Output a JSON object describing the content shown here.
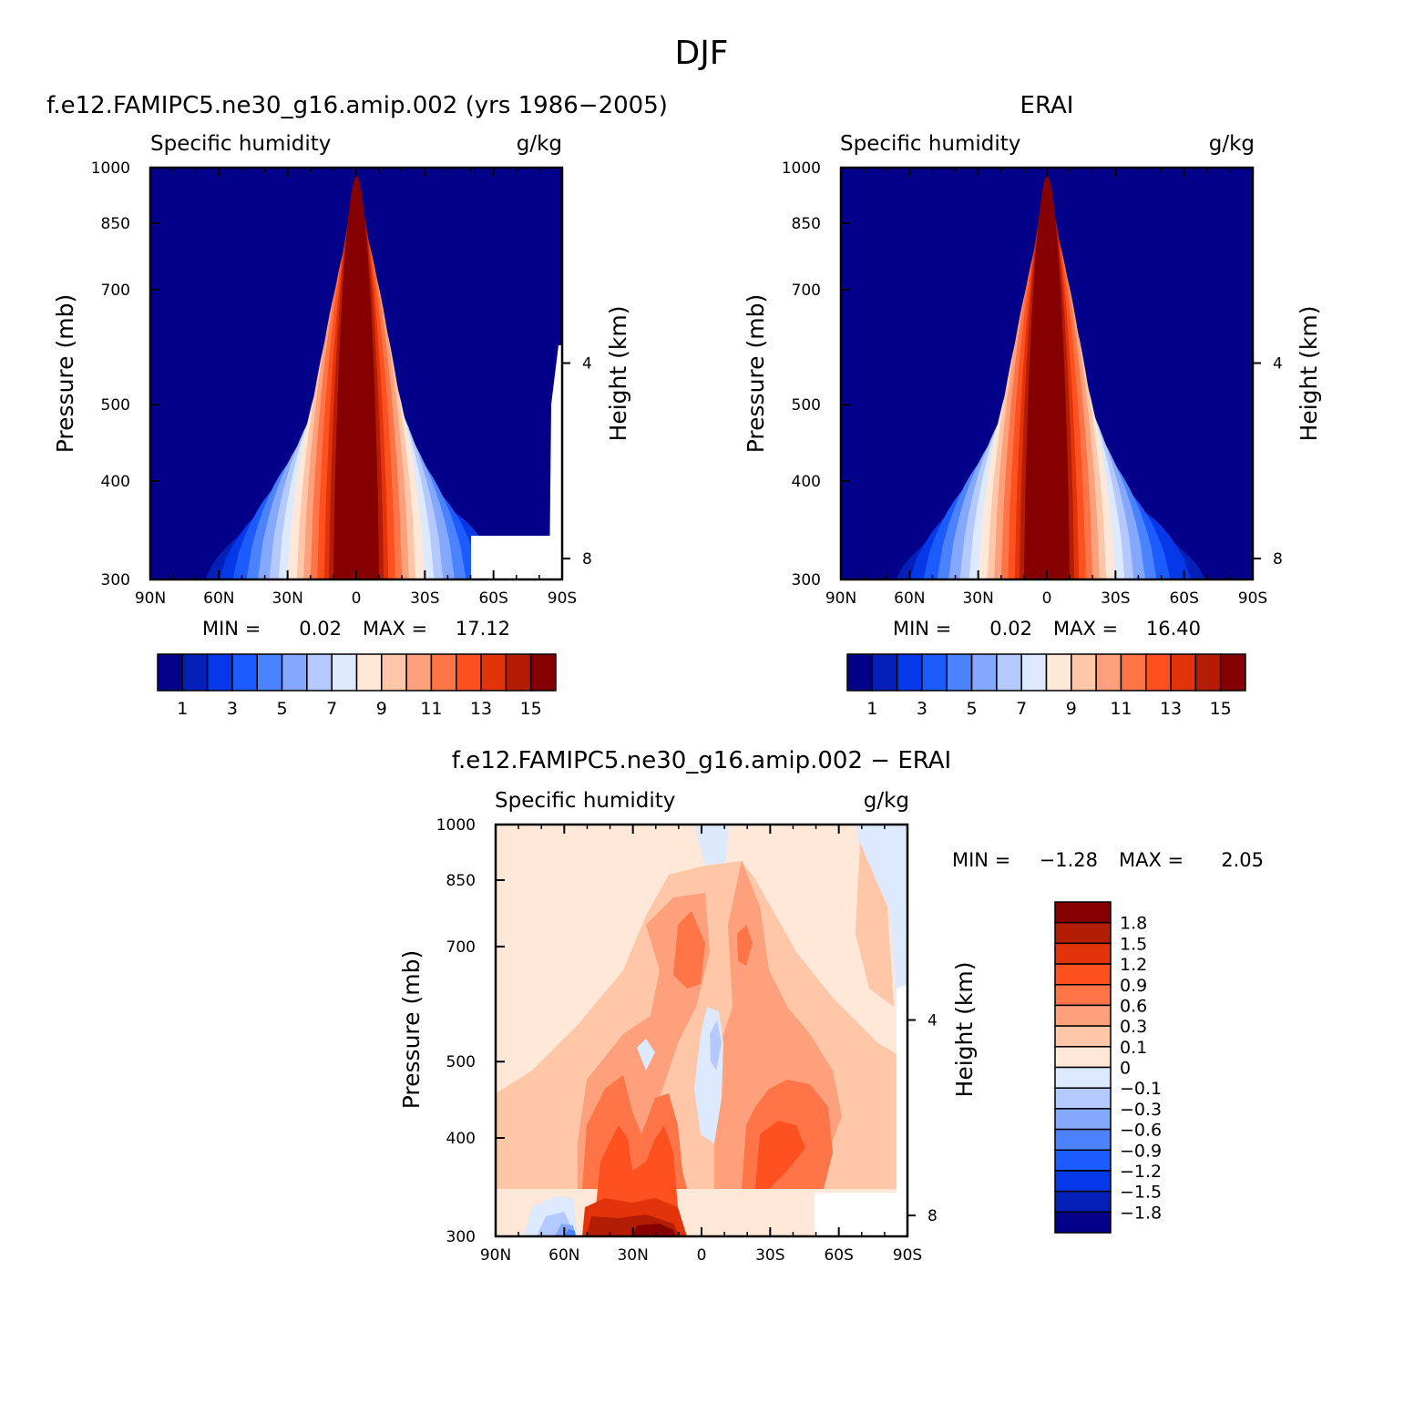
{
  "page": {
    "title": "DJF"
  },
  "panels": [
    {
      "title": "f.e12.FAMIPC5.ne30_g16.amip.002 (yrs 1986−2005)",
      "left_label": "Specific humidity",
      "right_label": "g/kg",
      "ylabel": "Pressure (mb)",
      "ylabel_right": "Height (km)",
      "stats": {
        "min_label": "MIN =",
        "min": "0.02",
        "max_label": "MAX =",
        "max": "17.12"
      }
    },
    {
      "title": "ERAI",
      "left_label": "Specific humidity",
      "right_label": "g/kg",
      "ylabel": "Pressure (mb)",
      "ylabel_right": "Height (km)",
      "stats": {
        "min_label": "MIN =",
        "min": "0.02",
        "max_label": "MAX =",
        "max": "16.40"
      }
    },
    {
      "title": "f.e12.FAMIPC5.ne30_g16.amip.002 − ERAI",
      "left_label": "Specific humidity",
      "right_label": "g/kg",
      "ylabel": "Pressure (mb)",
      "ylabel_right": "Height (km)",
      "stats": {
        "min_label": "MIN =",
        "min": "−1.28",
        "max_label": "MAX =",
        "max": "2.05"
      }
    }
  ],
  "chart_data": [
    {
      "type": "heatmap",
      "title": "f.e12.FAMIPC5.ne30_g16.amip.002 (yrs 1986−2005)",
      "variable": "Specific humidity",
      "units": "g/kg",
      "xlabel": "",
      "ylabel": "Pressure (mb)",
      "ylabel_right": "Height (km)",
      "x_ticks": [
        "90N",
        "60N",
        "30N",
        "0",
        "30S",
        "60S",
        "90S"
      ],
      "y_ticks": [
        300,
        400,
        500,
        700,
        850,
        1000
      ],
      "y_right_ticks": [
        8,
        4
      ],
      "ylim": [
        1000,
        300
      ],
      "min": 0.02,
      "max": 17.12,
      "colorbar_labels": [
        "1",
        "3",
        "5",
        "7",
        "9",
        "11",
        "13",
        "15"
      ],
      "colorbar_colors": [
        "#03008a",
        "#0520b8",
        "#0538e8",
        "#1c5cff",
        "#4a82ff",
        "#85a8ff",
        "#b4c9ff",
        "#dde9ff",
        "#ffe8d8",
        "#ffc6a8",
        "#ffa07c",
        "#ff7548",
        "#ff5020",
        "#e3330a",
        "#b31d04",
        "#870000"
      ],
      "profile_peak_lat": 0,
      "contour_tops_mb": [
        380,
        410,
        450,
        490,
        520,
        555,
        585,
        645,
        730,
        785,
        820,
        845,
        880,
        905,
        940,
        960
      ]
    },
    {
      "type": "heatmap",
      "title": "ERAI",
      "variable": "Specific humidity",
      "units": "g/kg",
      "xlabel": "",
      "ylabel": "Pressure (mb)",
      "ylabel_right": "Height (km)",
      "x_ticks": [
        "90N",
        "60N",
        "30N",
        "0",
        "30S",
        "60S",
        "90S"
      ],
      "y_ticks": [
        300,
        400,
        500,
        700,
        850,
        1000
      ],
      "y_right_ticks": [
        8,
        4
      ],
      "ylim": [
        1000,
        300
      ],
      "min": 0.02,
      "max": 16.4,
      "colorbar_labels": [
        "1",
        "3",
        "5",
        "7",
        "9",
        "11",
        "13",
        "15"
      ],
      "colorbar_colors": [
        "#03008a",
        "#0520b8",
        "#0538e8",
        "#1c5cff",
        "#4a82ff",
        "#85a8ff",
        "#b4c9ff",
        "#dde9ff",
        "#ffe8d8",
        "#ffc6a8",
        "#ffa07c",
        "#ff7548",
        "#ff5020",
        "#e3330a",
        "#b31d04",
        "#870000"
      ],
      "profile_peak_lat": 0,
      "contour_tops_mb": [
        370,
        410,
        450,
        490,
        520,
        555,
        585,
        645,
        730,
        785,
        820,
        845,
        880,
        905,
        940,
        960
      ]
    },
    {
      "type": "heatmap",
      "title": "f.e12.FAMIPC5.ne30_g16.amip.002 − ERAI",
      "variable": "Specific humidity",
      "units": "g/kg",
      "xlabel": "",
      "ylabel": "Pressure (mb)",
      "ylabel_right": "Height (km)",
      "x_ticks": [
        "90N",
        "60N",
        "30N",
        "0",
        "30S",
        "60S",
        "90S"
      ],
      "y_ticks": [
        300,
        400,
        500,
        700,
        850,
        1000
      ],
      "y_right_ticks": [
        8,
        4
      ],
      "ylim": [
        1000,
        300
      ],
      "min": -1.28,
      "max": 2.05,
      "colorbar_labels": [
        "1.8",
        "1.5",
        "1.2",
        "0.9",
        "0.6",
        "0.3",
        "0.1",
        "0",
        "−0.1",
        "−0.3",
        "−0.6",
        "−0.9",
        "−1.2",
        "−1.5",
        "−1.8"
      ],
      "colorbar_colors": [
        "#870000",
        "#b31d04",
        "#e3330a",
        "#ff5020",
        "#ff7548",
        "#ffa07c",
        "#ffc6a8",
        "#ffe8d8",
        "#dde9ff",
        "#b4c9ff",
        "#85a8ff",
        "#4a82ff",
        "#1c5cff",
        "#0538e8",
        "#0520b8",
        "#03008a"
      ]
    }
  ]
}
